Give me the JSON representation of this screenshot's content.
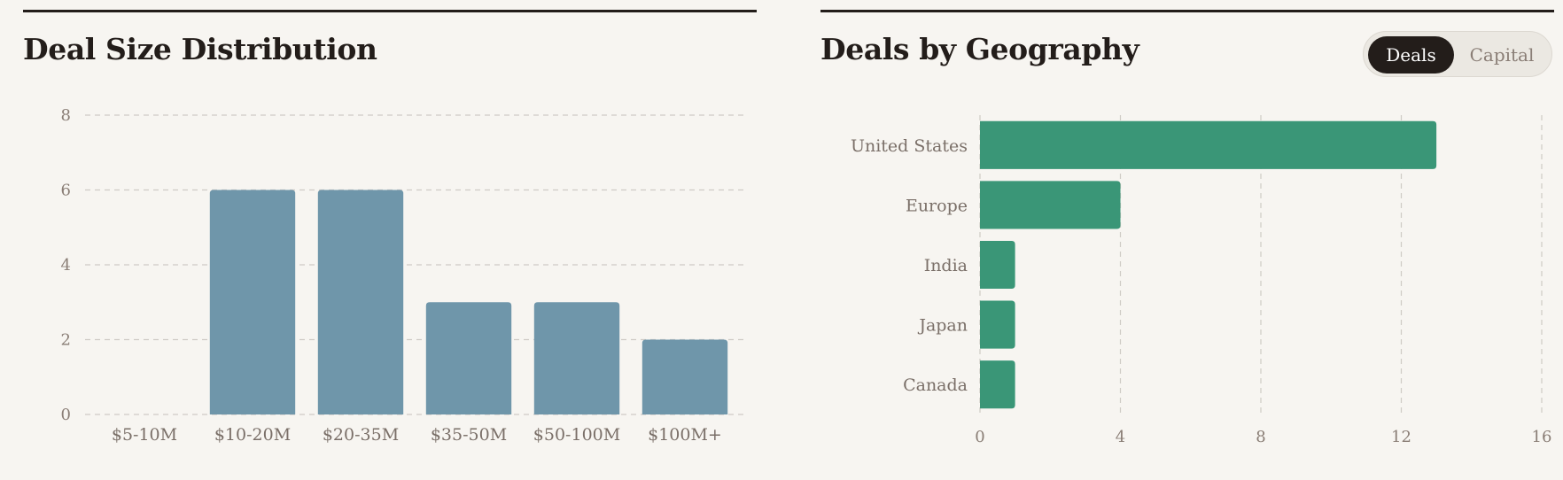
{
  "colors": {
    "bar_left": "#6f96aa",
    "bar_right": "#3a9677",
    "grid": "#cfcbc5",
    "tick": "#8a7e76",
    "ink": "#231d1a"
  },
  "toggle": {
    "active": "Deals",
    "deals_label": "Deals",
    "capital_label": "Capital"
  },
  "chart_data": [
    {
      "type": "bar",
      "orientation": "vertical",
      "title": "Deal Size Distribution",
      "categories": [
        "$5-10M",
        "$10-20M",
        "$20-35M",
        "$35-50M",
        "$50-100M",
        "$100M+"
      ],
      "values": [
        0,
        6,
        6,
        3,
        3,
        2
      ],
      "ylim": [
        0,
        8
      ],
      "yticks": [
        0,
        2,
        4,
        6,
        8
      ],
      "grid": true,
      "xlabel": "",
      "ylabel": ""
    },
    {
      "type": "bar",
      "orientation": "horizontal",
      "title": "Deals by Geography",
      "categories": [
        "United States",
        "Europe",
        "India",
        "Japan",
        "Canada"
      ],
      "values": [
        13,
        4,
        1,
        1,
        1
      ],
      "xlim": [
        0,
        16
      ],
      "xticks": [
        0,
        4,
        8,
        12,
        16
      ],
      "grid": true,
      "xlabel": "",
      "ylabel": ""
    }
  ]
}
